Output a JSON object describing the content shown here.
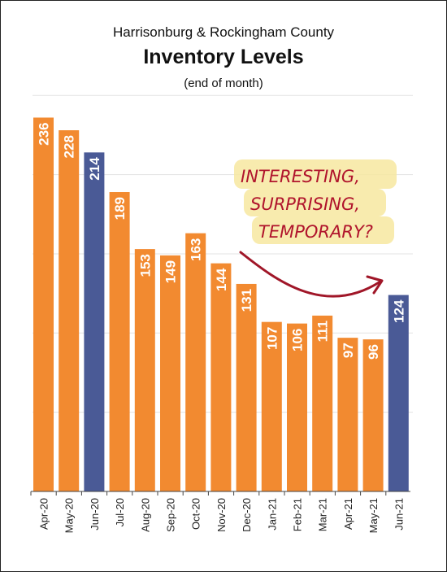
{
  "chart_data": {
    "type": "bar",
    "title": "Inventory Levels",
    "supertitle": "Harrisonburg & Rockingham County",
    "subtitle": "(end of month)",
    "categories": [
      "Apr-20",
      "May-20",
      "Jun-20",
      "Jul-20",
      "Aug-20",
      "Sep-20",
      "Oct-20",
      "Nov-20",
      "Dec-20",
      "Jan-21",
      "Feb-21",
      "Mar-21",
      "Apr-21",
      "May-21",
      "Jun-21"
    ],
    "values": [
      236,
      228,
      214,
      189,
      153,
      149,
      163,
      144,
      131,
      107,
      106,
      111,
      97,
      96,
      124
    ],
    "highlighted": [
      "Jun-20",
      "Jun-21"
    ],
    "colors": {
      "default": "#f28a30",
      "highlight": "#4a5a96"
    },
    "ylim": [
      0,
      250
    ],
    "grid": true,
    "annotation": {
      "lines": [
        "INTERESTING,",
        "SURPRISING,",
        "TEMPORARY?"
      ],
      "color": "#b0142c",
      "highlight_color": "#f7e7a0"
    }
  }
}
